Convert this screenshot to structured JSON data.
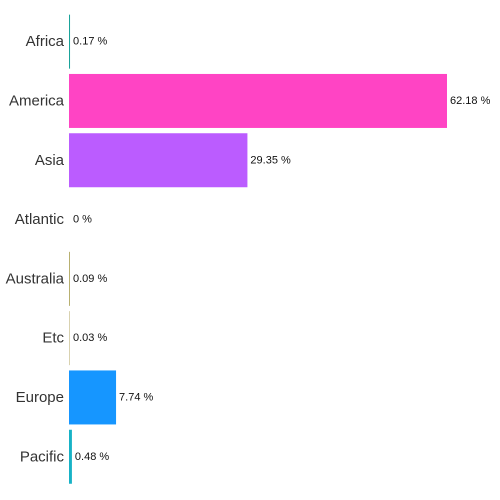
{
  "chart_data": {
    "type": "bar",
    "orientation": "horizontal",
    "categories": [
      "Africa",
      "America",
      "Asia",
      "Atlantic",
      "Australia",
      "Etc",
      "Europe",
      "Pacific"
    ],
    "values": [
      0.17,
      62.18,
      29.35,
      0,
      0.09,
      0.03,
      7.74,
      0.48
    ],
    "value_labels": [
      "0.17 %",
      "62.18 %",
      "29.35 %",
      "0 %",
      "0.09 %",
      "0.03 %",
      "7.74 %",
      "0.48 %"
    ],
    "colors": [
      "#1aa39a",
      "#ff44c4",
      "#bb5cff",
      "#888888",
      "#b8b070",
      "#d9d2b0",
      "#1696ff",
      "#17b2c6"
    ],
    "title": "",
    "xlabel": "",
    "ylabel": "",
    "xlim": [
      0,
      62.18
    ],
    "grid": false,
    "legend": "none"
  }
}
